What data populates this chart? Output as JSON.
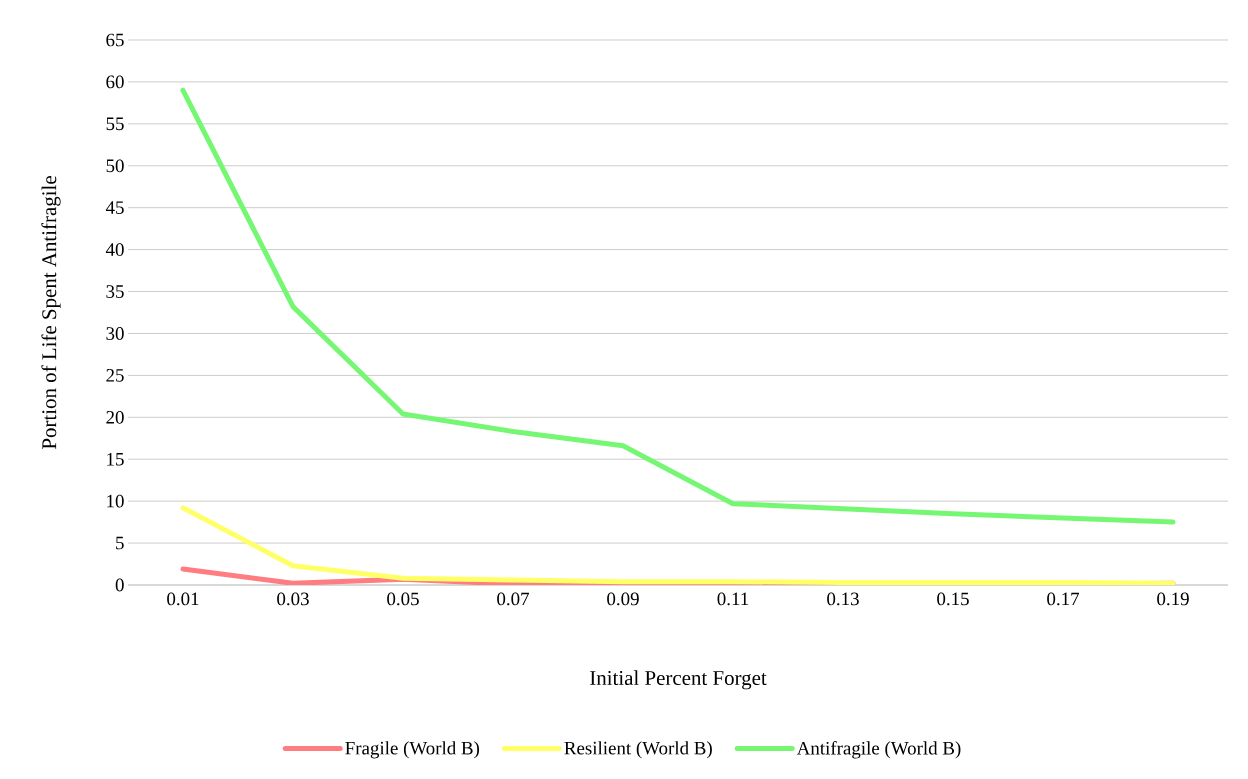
{
  "chart_data": {
    "type": "line",
    "xlabel": "Initial Percent Forget",
    "ylabel": "Portion of Life Spent Antifragile",
    "categories": [
      "0.01",
      "0.03",
      "0.05",
      "0.07",
      "0.09",
      "0.11",
      "0.13",
      "0.15",
      "0.17",
      "0.19"
    ],
    "series": [
      {
        "name": "Fragile (World B)",
        "color": "#ff7c80",
        "values": [
          1.9,
          0.2,
          0.7,
          0.1,
          0.1,
          0.1,
          0.1,
          0.1,
          0.1,
          0.2
        ]
      },
      {
        "name": "Resilient (World B)",
        "color": "#ffff66",
        "values": [
          9.2,
          2.3,
          0.8,
          0.6,
          0.4,
          0.4,
          0.3,
          0.3,
          0.3,
          0.2
        ]
      },
      {
        "name": "Antifragile (World B)",
        "color": "#75f774",
        "values": [
          59.0,
          33.2,
          20.4,
          18.3,
          16.6,
          9.7,
          9.1,
          8.5,
          8.0,
          7.5
        ]
      }
    ],
    "ylim": [
      0,
      65
    ],
    "yticks": [
      0,
      5,
      10,
      15,
      20,
      25,
      30,
      35,
      40,
      45,
      50,
      55,
      60,
      65
    ],
    "grid": "y",
    "legend": "bottom",
    "marker": "none",
    "line_style": "solid"
  }
}
